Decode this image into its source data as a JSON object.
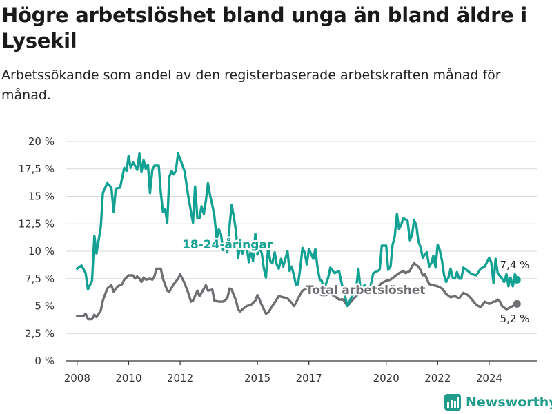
{
  "title": "Högre arbetslöshet bland unga än bland äldre i Lysekil",
  "subtitle": "Arbetssökande som andel av den registerbaserade arbetskraften månad för månad.",
  "brand": "Newsworthy",
  "colors": {
    "youth": "#12a192",
    "total": "#6e6e73",
    "grid": "#d9d9d9",
    "brand": "#1f9c8c"
  },
  "chart_data": {
    "type": "line",
    "ylim": [
      0,
      20
    ],
    "y_ticks": [
      0,
      2.5,
      5,
      7.5,
      10,
      12.5,
      15,
      17.5,
      20
    ],
    "y_tick_labels": [
      "0 %",
      "2,5 %",
      "5 %",
      "7,5 %",
      "10 %",
      "12,5 %",
      "15 %",
      "17,5 %",
      "20 %"
    ],
    "x_ticks": [
      2008,
      2010,
      2012,
      2015,
      2017,
      2020,
      2022,
      2024
    ],
    "x_tick_labels": [
      "2008",
      "2010",
      "2012",
      "2015",
      "2017",
      "2020",
      "2022",
      "2024"
    ],
    "grid": true,
    "series": [
      {
        "name": "18-24-åringar",
        "end_label": "7,4 %",
        "points": [
          [
            2008.0,
            8.4
          ],
          [
            2008.17,
            8.7
          ],
          [
            2008.33,
            8.0
          ],
          [
            2008.42,
            6.5
          ],
          [
            2008.58,
            7.3
          ],
          [
            2008.67,
            11.4
          ],
          [
            2008.75,
            9.8
          ],
          [
            2008.92,
            12.2
          ],
          [
            2009.0,
            15.3
          ],
          [
            2009.17,
            16.2
          ],
          [
            2009.33,
            15.8
          ],
          [
            2009.42,
            13.6
          ],
          [
            2009.5,
            15.7
          ],
          [
            2009.67,
            15.8
          ],
          [
            2009.83,
            17.6
          ],
          [
            2009.92,
            17.3
          ],
          [
            2010.0,
            18.7
          ],
          [
            2010.08,
            17.6
          ],
          [
            2010.17,
            18.1
          ],
          [
            2010.25,
            17.8
          ],
          [
            2010.33,
            17.4
          ],
          [
            2010.42,
            18.9
          ],
          [
            2010.5,
            17.2
          ],
          [
            2010.58,
            18.3
          ],
          [
            2010.67,
            17.5
          ],
          [
            2010.75,
            17.9
          ],
          [
            2010.83,
            15.3
          ],
          [
            2010.92,
            17.4
          ],
          [
            2011.0,
            17.8
          ],
          [
            2011.17,
            17.8
          ],
          [
            2011.25,
            15.3
          ],
          [
            2011.33,
            13.6
          ],
          [
            2011.42,
            13.8
          ],
          [
            2011.5,
            12.6
          ],
          [
            2011.58,
            16.8
          ],
          [
            2011.67,
            17.3
          ],
          [
            2011.75,
            17.0
          ],
          [
            2011.83,
            17.3
          ],
          [
            2011.92,
            18.9
          ],
          [
            2012.0,
            18.4
          ],
          [
            2012.17,
            17.3
          ],
          [
            2012.33,
            14.8
          ],
          [
            2012.42,
            13.6
          ],
          [
            2012.5,
            12.6
          ],
          [
            2012.58,
            15.9
          ],
          [
            2012.67,
            13.0
          ],
          [
            2012.75,
            13.0
          ],
          [
            2012.83,
            14.1
          ],
          [
            2012.92,
            13.4
          ],
          [
            2013.0,
            14.6
          ],
          [
            2013.08,
            16.2
          ],
          [
            2013.17,
            15.0
          ],
          [
            2013.25,
            14.2
          ],
          [
            2013.33,
            13.2
          ],
          [
            2013.42,
            11.1
          ],
          [
            2013.5,
            12.0
          ],
          [
            2013.58,
            11.6
          ],
          [
            2013.67,
            10.1
          ],
          [
            2013.75,
            10.7
          ],
          [
            2013.83,
            9.9
          ],
          [
            2013.92,
            12.3
          ],
          [
            2014.0,
            14.2
          ],
          [
            2014.08,
            13.2
          ],
          [
            2014.17,
            11.8
          ],
          [
            2014.25,
            9.4
          ],
          [
            2014.33,
            10.5
          ],
          [
            2014.42,
            9.8
          ],
          [
            2014.5,
            10.4
          ],
          [
            2014.58,
            10.5
          ],
          [
            2014.67,
            9.0
          ],
          [
            2014.75,
            10.1
          ],
          [
            2014.83,
            9.1
          ],
          [
            2014.92,
            11.6
          ],
          [
            2015.0,
            9.7
          ],
          [
            2015.08,
            10.4
          ],
          [
            2015.17,
            9.8
          ],
          [
            2015.25,
            8.4
          ],
          [
            2015.33,
            7.6
          ],
          [
            2015.42,
            10.4
          ],
          [
            2015.5,
            9.1
          ],
          [
            2015.58,
            8.9
          ],
          [
            2015.67,
            9.9
          ],
          [
            2015.75,
            8.8
          ],
          [
            2015.83,
            8.4
          ],
          [
            2015.92,
            9.3
          ],
          [
            2016.0,
            8.6
          ],
          [
            2016.17,
            10.0
          ],
          [
            2016.25,
            8.2
          ],
          [
            2016.33,
            8.6
          ],
          [
            2016.42,
            7.8
          ],
          [
            2016.5,
            6.9
          ],
          [
            2016.58,
            7.0
          ],
          [
            2016.67,
            8.6
          ],
          [
            2016.75,
            10.3
          ],
          [
            2016.83,
            9.9
          ],
          [
            2016.92,
            8.8
          ],
          [
            2017.0,
            10.2
          ],
          [
            2017.17,
            9.3
          ],
          [
            2017.25,
            10.2
          ],
          [
            2017.33,
            8.6
          ],
          [
            2017.42,
            7.4
          ],
          [
            2017.5,
            7.3
          ],
          [
            2017.58,
            6.5
          ],
          [
            2017.75,
            7.6
          ],
          [
            2017.83,
            8.5
          ],
          [
            2018.0,
            8.0
          ],
          [
            2018.17,
            8.2
          ],
          [
            2018.25,
            7.3
          ],
          [
            2018.33,
            6.5
          ],
          [
            2018.5,
            5.0
          ],
          [
            2018.67,
            5.9
          ],
          [
            2018.83,
            6.5
          ],
          [
            2018.92,
            8.4
          ],
          [
            2019.0,
            6.6
          ],
          [
            2019.17,
            6.9
          ],
          [
            2019.33,
            6.1
          ],
          [
            2019.5,
            8.0
          ],
          [
            2019.67,
            8.2
          ],
          [
            2019.75,
            8.3
          ],
          [
            2019.83,
            10.5
          ],
          [
            2020.0,
            10.5
          ],
          [
            2020.08,
            8.3
          ],
          [
            2020.17,
            8.6
          ],
          [
            2020.25,
            10.6
          ],
          [
            2020.33,
            11.3
          ],
          [
            2020.42,
            13.4
          ],
          [
            2020.5,
            12.0
          ],
          [
            2020.58,
            12.4
          ],
          [
            2020.67,
            13.0
          ],
          [
            2020.83,
            12.8
          ],
          [
            2020.92,
            11.0
          ],
          [
            2021.0,
            11.4
          ],
          [
            2021.08,
            12.8
          ],
          [
            2021.17,
            12.4
          ],
          [
            2021.25,
            10.9
          ],
          [
            2021.33,
            10.4
          ],
          [
            2021.42,
            9.4
          ],
          [
            2021.5,
            9.7
          ],
          [
            2021.58,
            9.9
          ],
          [
            2021.67,
            8.6
          ],
          [
            2021.75,
            8.9
          ],
          [
            2021.83,
            9.6
          ],
          [
            2021.92,
            8.5
          ],
          [
            2022.0,
            10.6
          ],
          [
            2022.08,
            10.1
          ],
          [
            2022.17,
            9.1
          ],
          [
            2022.25,
            7.8
          ],
          [
            2022.33,
            7.2
          ],
          [
            2022.42,
            7.6
          ],
          [
            2022.5,
            8.4
          ],
          [
            2022.58,
            7.6
          ],
          [
            2022.67,
            7.5
          ],
          [
            2022.75,
            8.1
          ],
          [
            2022.83,
            7.5
          ],
          [
            2022.92,
            7.5
          ],
          [
            2023.0,
            8.5
          ],
          [
            2023.17,
            8.2
          ],
          [
            2023.33,
            7.9
          ],
          [
            2023.5,
            7.8
          ],
          [
            2023.67,
            8.4
          ],
          [
            2023.83,
            8.6
          ],
          [
            2024.0,
            9.4
          ],
          [
            2024.08,
            9.0
          ],
          [
            2024.17,
            7.1
          ],
          [
            2024.25,
            9.3
          ],
          [
            2024.33,
            8.0
          ],
          [
            2024.5,
            7.5
          ],
          [
            2024.58,
            7.2
          ],
          [
            2024.67,
            7.9
          ],
          [
            2024.75,
            6.8
          ],
          [
            2024.83,
            7.6
          ],
          [
            2024.92,
            6.8
          ],
          [
            2025.0,
            7.9
          ],
          [
            2025.08,
            7.4
          ]
        ]
      },
      {
        "name": "Total arbetslöshet",
        "end_label": "5,2 %",
        "points": [
          [
            2008.0,
            4.1
          ],
          [
            2008.25,
            4.1
          ],
          [
            2008.33,
            4.3
          ],
          [
            2008.42,
            3.8
          ],
          [
            2008.58,
            3.8
          ],
          [
            2008.67,
            4.2
          ],
          [
            2008.75,
            4.0
          ],
          [
            2008.92,
            4.6
          ],
          [
            2009.0,
            5.5
          ],
          [
            2009.17,
            6.6
          ],
          [
            2009.33,
            6.9
          ],
          [
            2009.42,
            6.3
          ],
          [
            2009.58,
            6.8
          ],
          [
            2009.75,
            7.0
          ],
          [
            2009.83,
            7.4
          ],
          [
            2010.0,
            7.8
          ],
          [
            2010.17,
            7.8
          ],
          [
            2010.25,
            7.5
          ],
          [
            2010.33,
            7.7
          ],
          [
            2010.42,
            7.5
          ],
          [
            2010.5,
            7.2
          ],
          [
            2010.58,
            7.6
          ],
          [
            2010.67,
            7.4
          ],
          [
            2010.83,
            7.5
          ],
          [
            2010.92,
            7.4
          ],
          [
            2011.0,
            7.7
          ],
          [
            2011.08,
            8.4
          ],
          [
            2011.25,
            8.4
          ],
          [
            2011.33,
            7.5
          ],
          [
            2011.5,
            6.4
          ],
          [
            2011.58,
            6.3
          ],
          [
            2011.75,
            7.0
          ],
          [
            2011.92,
            7.5
          ],
          [
            2012.0,
            7.9
          ],
          [
            2012.17,
            7.1
          ],
          [
            2012.33,
            6.1
          ],
          [
            2012.42,
            5.4
          ],
          [
            2012.5,
            5.5
          ],
          [
            2012.67,
            6.4
          ],
          [
            2012.75,
            5.9
          ],
          [
            2012.83,
            6.2
          ],
          [
            2013.0,
            6.9
          ],
          [
            2013.08,
            6.4
          ],
          [
            2013.25,
            6.5
          ],
          [
            2013.33,
            5.5
          ],
          [
            2013.5,
            5.4
          ],
          [
            2013.67,
            5.4
          ],
          [
            2013.83,
            5.7
          ],
          [
            2013.92,
            6.6
          ],
          [
            2014.0,
            6.5
          ],
          [
            2014.17,
            5.5
          ],
          [
            2014.25,
            4.7
          ],
          [
            2014.33,
            4.5
          ],
          [
            2014.42,
            4.7
          ],
          [
            2014.58,
            5.0
          ],
          [
            2014.75,
            5.1
          ],
          [
            2014.92,
            5.5
          ],
          [
            2015.0,
            6.0
          ],
          [
            2015.08,
            5.6
          ],
          [
            2015.17,
            5.1
          ],
          [
            2015.33,
            4.3
          ],
          [
            2015.42,
            4.4
          ],
          [
            2015.58,
            5.0
          ],
          [
            2015.75,
            5.6
          ],
          [
            2015.83,
            5.9
          ],
          [
            2016.0,
            5.8
          ],
          [
            2016.17,
            5.7
          ],
          [
            2016.33,
            5.3
          ],
          [
            2016.42,
            5.0
          ],
          [
            2016.5,
            5.3
          ],
          [
            2016.58,
            5.7
          ],
          [
            2016.75,
            6.4
          ],
          [
            2016.92,
            6.6
          ],
          [
            2017.0,
            6.5
          ],
          [
            2017.17,
            6.4
          ],
          [
            2017.33,
            6.2
          ],
          [
            2017.5,
            6.0
          ],
          [
            2017.67,
            6.0
          ],
          [
            2017.83,
            6.1
          ],
          [
            2018.0,
            5.9
          ],
          [
            2018.17,
            5.6
          ],
          [
            2018.33,
            5.6
          ],
          [
            2018.5,
            5.0
          ],
          [
            2018.67,
            5.5
          ],
          [
            2018.83,
            5.9
          ],
          [
            2019.0,
            6.2
          ],
          [
            2019.17,
            6.3
          ],
          [
            2019.33,
            6.1
          ],
          [
            2019.5,
            6.3
          ],
          [
            2019.67,
            6.7
          ],
          [
            2019.83,
            7.1
          ],
          [
            2020.0,
            7.3
          ],
          [
            2020.17,
            7.4
          ],
          [
            2020.33,
            7.7
          ],
          [
            2020.5,
            8.0
          ],
          [
            2020.67,
            8.2
          ],
          [
            2020.75,
            8.0
          ],
          [
            2020.83,
            8.1
          ],
          [
            2020.92,
            8.2
          ],
          [
            2021.0,
            8.6
          ],
          [
            2021.08,
            8.9
          ],
          [
            2021.25,
            8.6
          ],
          [
            2021.33,
            8.3
          ],
          [
            2021.42,
            7.8
          ],
          [
            2021.5,
            7.9
          ],
          [
            2021.67,
            7.0
          ],
          [
            2021.83,
            6.9
          ],
          [
            2022.0,
            6.8
          ],
          [
            2022.17,
            6.6
          ],
          [
            2022.33,
            6.1
          ],
          [
            2022.5,
            5.8
          ],
          [
            2022.67,
            5.9
          ],
          [
            2022.83,
            5.7
          ],
          [
            2023.0,
            6.2
          ],
          [
            2023.17,
            6.0
          ],
          [
            2023.33,
            5.6
          ],
          [
            2023.5,
            5.1
          ],
          [
            2023.67,
            4.9
          ],
          [
            2023.83,
            5.4
          ],
          [
            2024.0,
            5.2
          ],
          [
            2024.17,
            5.4
          ],
          [
            2024.25,
            5.4
          ],
          [
            2024.33,
            5.6
          ],
          [
            2024.42,
            5.4
          ],
          [
            2024.5,
            5.0
          ],
          [
            2024.67,
            4.7
          ],
          [
            2024.83,
            4.9
          ],
          [
            2025.0,
            5.1
          ],
          [
            2025.08,
            5.2
          ]
        ]
      }
    ]
  }
}
